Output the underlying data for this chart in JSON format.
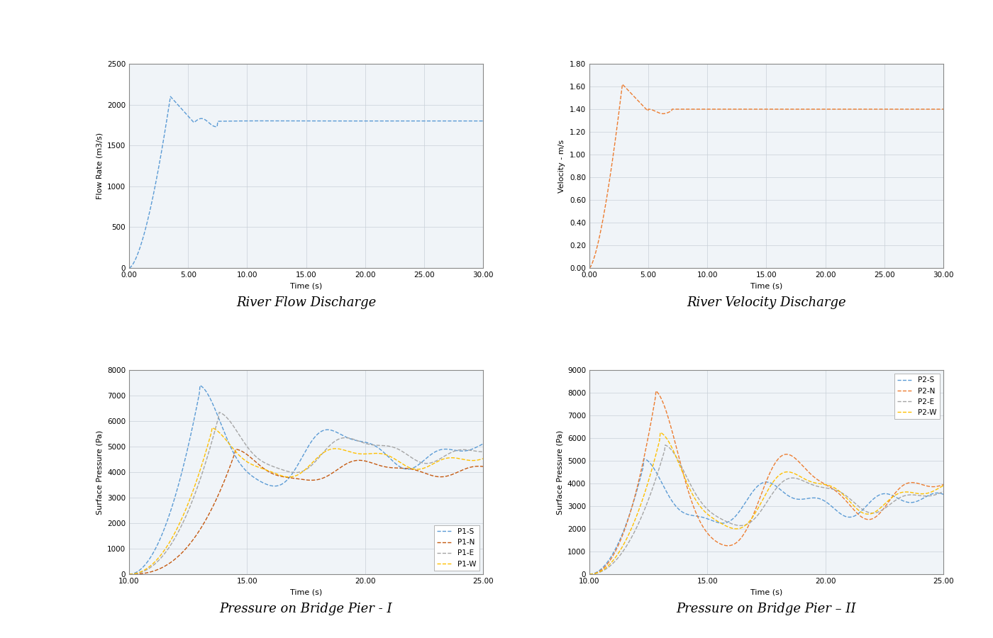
{
  "fig1": {
    "title": "River Flow Discharge",
    "xlabel": "Time (s)",
    "ylabel": "Flow Rate (m3/s)",
    "xlim": [
      0,
      30
    ],
    "ylim": [
      0,
      2500
    ],
    "xticks": [
      0.0,
      5.0,
      10.0,
      15.0,
      20.0,
      25.0,
      30.0
    ],
    "yticks": [
      0,
      500,
      1000,
      1500,
      2000,
      2500
    ],
    "color": "#5B9BD5",
    "peak_x": 3.5,
    "peak_y": 2100,
    "steady_y": 1800
  },
  "fig2": {
    "title": "River Velocity Discharge",
    "xlabel": "Time (s)",
    "ylabel": "Velocity - m/s",
    "xlim": [
      0,
      30
    ],
    "ylim": [
      0.0,
      1.8
    ],
    "xticks": [
      0.0,
      5.0,
      10.0,
      15.0,
      20.0,
      25.0,
      30.0
    ],
    "yticks": [
      0.0,
      0.2,
      0.4,
      0.6,
      0.8,
      1.0,
      1.2,
      1.4,
      1.6,
      1.8
    ],
    "color": "#ED7D31",
    "peak_x": 2.8,
    "peak_y": 1.62,
    "steady_y": 1.4
  },
  "fig3": {
    "title": "Pressure on Bridge Pier - I",
    "xlabel": "Time (s)",
    "ylabel": "Surface Pressure (Pa)",
    "xlim": [
      10,
      25
    ],
    "ylim": [
      0,
      8000
    ],
    "xticks": [
      10.0,
      15.0,
      20.0,
      25.0
    ],
    "yticks": [
      0,
      1000,
      2000,
      3000,
      4000,
      5000,
      6000,
      7000,
      8000
    ],
    "series": {
      "P1-S": {
        "color": "#5B9BD5"
      },
      "P1-N": {
        "color": "#C55A11"
      },
      "P1-E": {
        "color": "#A5A5A5"
      },
      "P1-W": {
        "color": "#FFC000"
      }
    }
  },
  "fig4": {
    "title": "Pressure on Bridge Pier – II",
    "xlabel": "Time (s)",
    "ylabel": "Surface Pressure (Pa)",
    "xlim": [
      10,
      25
    ],
    "ylim": [
      0,
      9000
    ],
    "xticks": [
      10.0,
      15.0,
      20.0,
      25.0
    ],
    "yticks": [
      0,
      1000,
      2000,
      3000,
      4000,
      5000,
      6000,
      7000,
      8000,
      9000
    ],
    "series": {
      "P2-S": {
        "color": "#5B9BD5"
      },
      "P2-N": {
        "color": "#ED7D31"
      },
      "P2-E": {
        "color": "#A5A5A5"
      },
      "P2-W": {
        "color": "#FFC000"
      }
    }
  },
  "title_fontsize": 13,
  "label_fontsize": 8,
  "tick_fontsize": 7.5
}
